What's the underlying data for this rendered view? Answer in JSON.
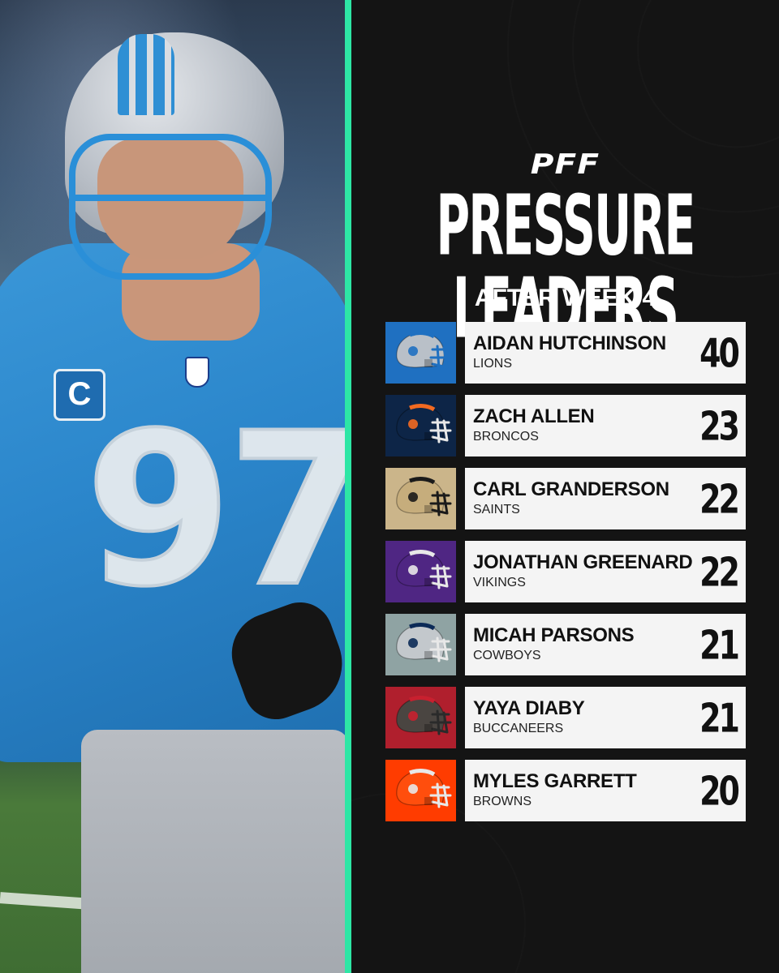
{
  "brand": {
    "logo": "PFF",
    "accent": "#2ee6a5"
  },
  "title": "PRESSURE LEADERS",
  "subtitle": "AFTER WEEK 4",
  "photo": {
    "jersey_number": "97",
    "captain_patch": "C"
  },
  "leaders": [
    {
      "name": "AIDAN HUTCHINSON",
      "team": "LIONS",
      "value": "40",
      "bg": "#1f70c1",
      "shell": "#b9c0c8",
      "stripe": "#1f70c1",
      "mask": "#1f70c1",
      "icon": "lions-helmet-icon"
    },
    {
      "name": "ZACH ALLEN",
      "team": "BRONCOS",
      "value": "23",
      "bg": "#0d2547",
      "shell": "#0d2547",
      "stripe": "#f26a21",
      "mask": "#e8e8e8",
      "icon": "broncos-helmet-icon"
    },
    {
      "name": "CARL GRANDERSON",
      "team": "SAINTS",
      "value": "22",
      "bg": "#cbb58a",
      "shell": "#c6ad7c",
      "stripe": "#1a1a1a",
      "mask": "#1a1a1a",
      "icon": "saints-helmet-icon"
    },
    {
      "name": "JONATHAN GREENARD",
      "team": "VIKINGS",
      "value": "22",
      "bg": "#4f2683",
      "shell": "#4f2683",
      "stripe": "#e8e8e8",
      "mask": "#e8e8e8",
      "icon": "vikings-helmet-icon"
    },
    {
      "name": "MICAH PARSONS",
      "team": "COWBOYS",
      "value": "21",
      "bg": "#8fa3a3",
      "shell": "#c3c8cc",
      "stripe": "#0b2a57",
      "mask": "#e8e8e8",
      "icon": "cowboys-helmet-icon"
    },
    {
      "name": "YAYA DIABY",
      "team": "BUCCANEERS",
      "value": "21",
      "bg": "#b01f2d",
      "shell": "#4a4541",
      "stripe": "#c8202f",
      "mask": "#2a2a2a",
      "icon": "buccaneers-helmet-icon"
    },
    {
      "name": "MYLES GARRETT",
      "team": "BROWNS",
      "value": "20",
      "bg": "#ff3c00",
      "shell": "#ff4e0d",
      "stripe": "#e8e8e8",
      "mask": "#e8e8e8",
      "icon": "browns-helmet-icon"
    }
  ]
}
